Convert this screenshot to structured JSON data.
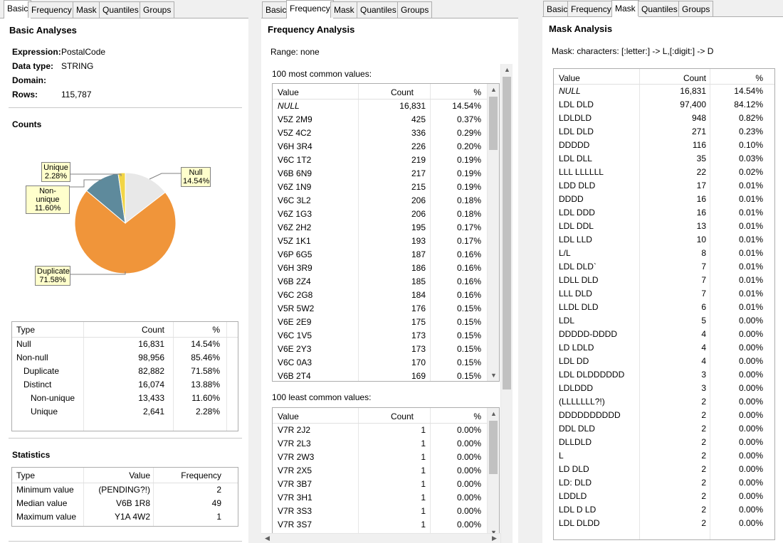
{
  "tabs": [
    "Basic",
    "Frequency",
    "Mask",
    "Quantiles",
    "Groups"
  ],
  "colors": {
    "null": "#e8e8e8",
    "duplicate": "#f0953a",
    "nonunique": "#5e8a9c",
    "unique": "#f2d546",
    "callout": "#ffffcc"
  },
  "basic": {
    "title": "Basic Analyses",
    "expression_label": "Expression:",
    "expression_value": "PostalCode",
    "datatype_label": "Data type:",
    "datatype_value": "STRING",
    "domain_label": "Domain:",
    "rows_label": "Rows:",
    "rows_value": "115,787",
    "counts_title": "Counts",
    "pie_callouts": {
      "unique": [
        "Unique",
        "2.28%"
      ],
      "nonunique": [
        "Non-unique",
        "11.60%"
      ],
      "null": [
        "Null",
        "14.54%"
      ],
      "duplicate": [
        "Duplicate",
        "71.58%"
      ]
    },
    "chart_data": {
      "type": "pie",
      "labels": [
        "Null",
        "Duplicate",
        "Non-unique",
        "Unique"
      ],
      "values": [
        14.54,
        71.58,
        11.6,
        2.28
      ]
    },
    "counts_table": {
      "headers": [
        "Type",
        "Count",
        "%"
      ],
      "rows": [
        [
          "Null",
          "16,831",
          "14.54%"
        ],
        [
          "Non-null",
          "98,956",
          "85.46%"
        ],
        [
          "Duplicate",
          "82,882",
          "71.58%"
        ],
        [
          "Distinct",
          "16,074",
          "13.88%"
        ],
        [
          "Non-unique",
          "13,433",
          "11.60%"
        ],
        [
          "Unique",
          "2,641",
          "2.28%"
        ]
      ]
    },
    "stats_title": "Statistics",
    "stats_table": {
      "headers": [
        "Type",
        "Value",
        "Frequency"
      ],
      "rows": [
        [
          "Minimum value",
          "(PENDING?!)",
          "2"
        ],
        [
          "Median value",
          "V6B 1R8",
          "49"
        ],
        [
          "Maximum value",
          "Y1A 4W2",
          "1"
        ]
      ]
    }
  },
  "frequency": {
    "title": "Frequency Analysis",
    "range": "Range:  none",
    "most_label": "100 most common values:",
    "least_label": "100 least common values:",
    "headers": [
      "Value",
      "Count",
      "%"
    ],
    "most_rows": [
      [
        "NULL",
        "16,831",
        "14.54%"
      ],
      [
        "V5Z 2M9",
        "425",
        "0.37%"
      ],
      [
        "V5Z 4C2",
        "336",
        "0.29%"
      ],
      [
        "V6H 3R4",
        "226",
        "0.20%"
      ],
      [
        "V6C 1T2",
        "219",
        "0.19%"
      ],
      [
        "V6B 6N9",
        "217",
        "0.19%"
      ],
      [
        "V6Z 1N9",
        "215",
        "0.19%"
      ],
      [
        "V6C 3L2",
        "206",
        "0.18%"
      ],
      [
        "V6Z 1G3",
        "206",
        "0.18%"
      ],
      [
        "V6Z 2H2",
        "195",
        "0.17%"
      ],
      [
        "V5Z 1K1",
        "193",
        "0.17%"
      ],
      [
        "V6P 6G5",
        "187",
        "0.16%"
      ],
      [
        "V6H 3R9",
        "186",
        "0.16%"
      ],
      [
        "V6B 2Z4",
        "185",
        "0.16%"
      ],
      [
        "V6C 2G8",
        "184",
        "0.16%"
      ],
      [
        "V5R 5W2",
        "176",
        "0.15%"
      ],
      [
        "V6E 2E9",
        "175",
        "0.15%"
      ],
      [
        "V6C 1V5",
        "173",
        "0.15%"
      ],
      [
        "V6E 2Y3",
        "173",
        "0.15%"
      ],
      [
        "V6C 0A3",
        "170",
        "0.15%"
      ],
      [
        "V6B 2T4",
        "169",
        "0.15%"
      ]
    ],
    "least_rows": [
      [
        "V7R 2J2",
        "1",
        "0.00%"
      ],
      [
        "V7R 2L3",
        "1",
        "0.00%"
      ],
      [
        "V7R 2W3",
        "1",
        "0.00%"
      ],
      [
        "V7R 2X5",
        "1",
        "0.00%"
      ],
      [
        "V7R 3B7",
        "1",
        "0.00%"
      ],
      [
        "V7R 3H1",
        "1",
        "0.00%"
      ],
      [
        "V7R 3S3",
        "1",
        "0.00%"
      ],
      [
        "V7R 3S7",
        "1",
        "0.00%"
      ]
    ]
  },
  "mask": {
    "title": "Mask Analysis",
    "mask_line": "Mask:  characters: [:letter:] -> L,[:digit:] -> D",
    "headers": [
      "Value",
      "Count",
      "%"
    ],
    "rows": [
      [
        "NULL",
        "16,831",
        "14.54%"
      ],
      [
        "LDL DLD",
        "97,400",
        "84.12%"
      ],
      [
        "LDLDLD",
        "948",
        "0.82%"
      ],
      [
        "LDL  DLD",
        "271",
        "0.23%"
      ],
      [
        "DDDDD",
        "116",
        "0.10%"
      ],
      [
        "LDL DLL",
        "35",
        "0.03%"
      ],
      [
        "LLL LLLLLL",
        "22",
        "0.02%"
      ],
      [
        "LDD DLD",
        "17",
        "0.01%"
      ],
      [
        "DDDD",
        "16",
        "0.01%"
      ],
      [
        "LDL DDD",
        "16",
        "0.01%"
      ],
      [
        "LDL DDL",
        "13",
        "0.01%"
      ],
      [
        "LDL LLD",
        "10",
        "0.01%"
      ],
      [
        "L/L",
        "8",
        "0.01%"
      ],
      [
        "LDL DLD`",
        "7",
        "0.01%"
      ],
      [
        "LDLL DLD",
        "7",
        "0.01%"
      ],
      [
        "LLL DLD",
        "7",
        "0.01%"
      ],
      [
        "LLDL DLD",
        "6",
        "0.01%"
      ],
      [
        "LDL",
        "5",
        "0.00%"
      ],
      [
        "DDDDD-DDDD",
        "4",
        "0.00%"
      ],
      [
        "LD LDLD",
        "4",
        "0.00%"
      ],
      [
        "LDL DD",
        "4",
        "0.00%"
      ],
      [
        "LDL DLDDDDDD",
        "3",
        "0.00%"
      ],
      [
        "LDLDDD",
        "3",
        "0.00%"
      ],
      [
        "(LLLLLLL?!)",
        "2",
        "0.00%"
      ],
      [
        "DDDDDDDDDD",
        "2",
        "0.00%"
      ],
      [
        "DDL DLD",
        "2",
        "0.00%"
      ],
      [
        "DLLDLD",
        "2",
        "0.00%"
      ],
      [
        "L",
        "2",
        "0.00%"
      ],
      [
        "LD DLD",
        "2",
        "0.00%"
      ],
      [
        "LD: DLD",
        "2",
        "0.00%"
      ],
      [
        "LDDLD",
        "2",
        "0.00%"
      ],
      [
        "LDL D LD",
        "2",
        "0.00%"
      ],
      [
        "LDL DLDD",
        "2",
        "0.00%"
      ]
    ]
  }
}
